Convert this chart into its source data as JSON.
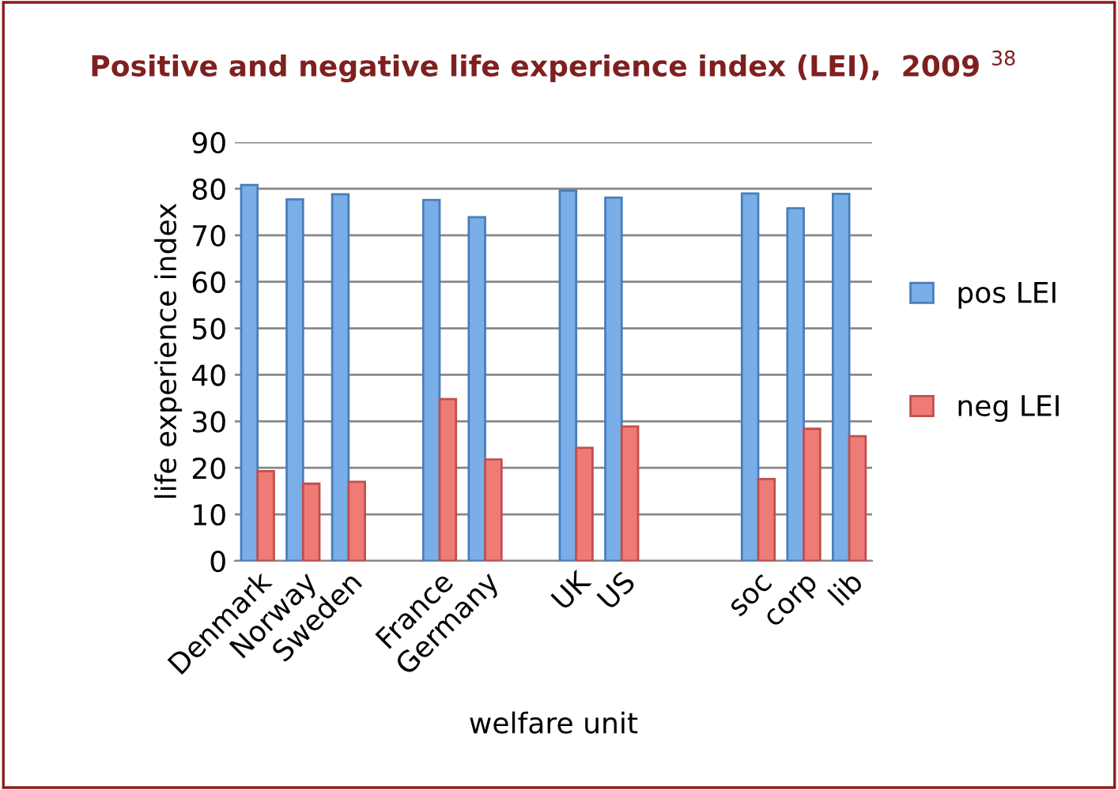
{
  "chart_data": {
    "type": "bar",
    "title": "Positive and negative life experience index (LEI),  2009 $^{38}$",
    "xlabel": "welfare unit",
    "ylabel": "life experience index",
    "categories": [
      "Denmark",
      "Norway",
      "Sweden",
      null,
      "France",
      "Germany",
      null,
      "UK",
      "US",
      null,
      null,
      "soc",
      "corp",
      "lib"
    ],
    "series": [
      {
        "name": "pos LEI",
        "color": "#7aaee8",
        "values": [
          80.8,
          77.7,
          78.8,
          null,
          77.6,
          73.9,
          null,
          79.6,
          78.1,
          null,
          null,
          79,
          75.8,
          78.9
        ]
      },
      {
        "name": "neg LEI",
        "color": "#ef7b76",
        "values": [
          19.3,
          16.6,
          17,
          null,
          34.8,
          21.8,
          null,
          24.3,
          28.9,
          null,
          null,
          17.6,
          28.4,
          26.8
        ]
      }
    ],
    "ylim": [
      0,
      90
    ],
    "yticks": [
      0,
      10,
      20,
      30,
      40,
      50,
      60,
      70,
      80,
      90
    ],
    "grid": "y",
    "legend": "right"
  }
}
